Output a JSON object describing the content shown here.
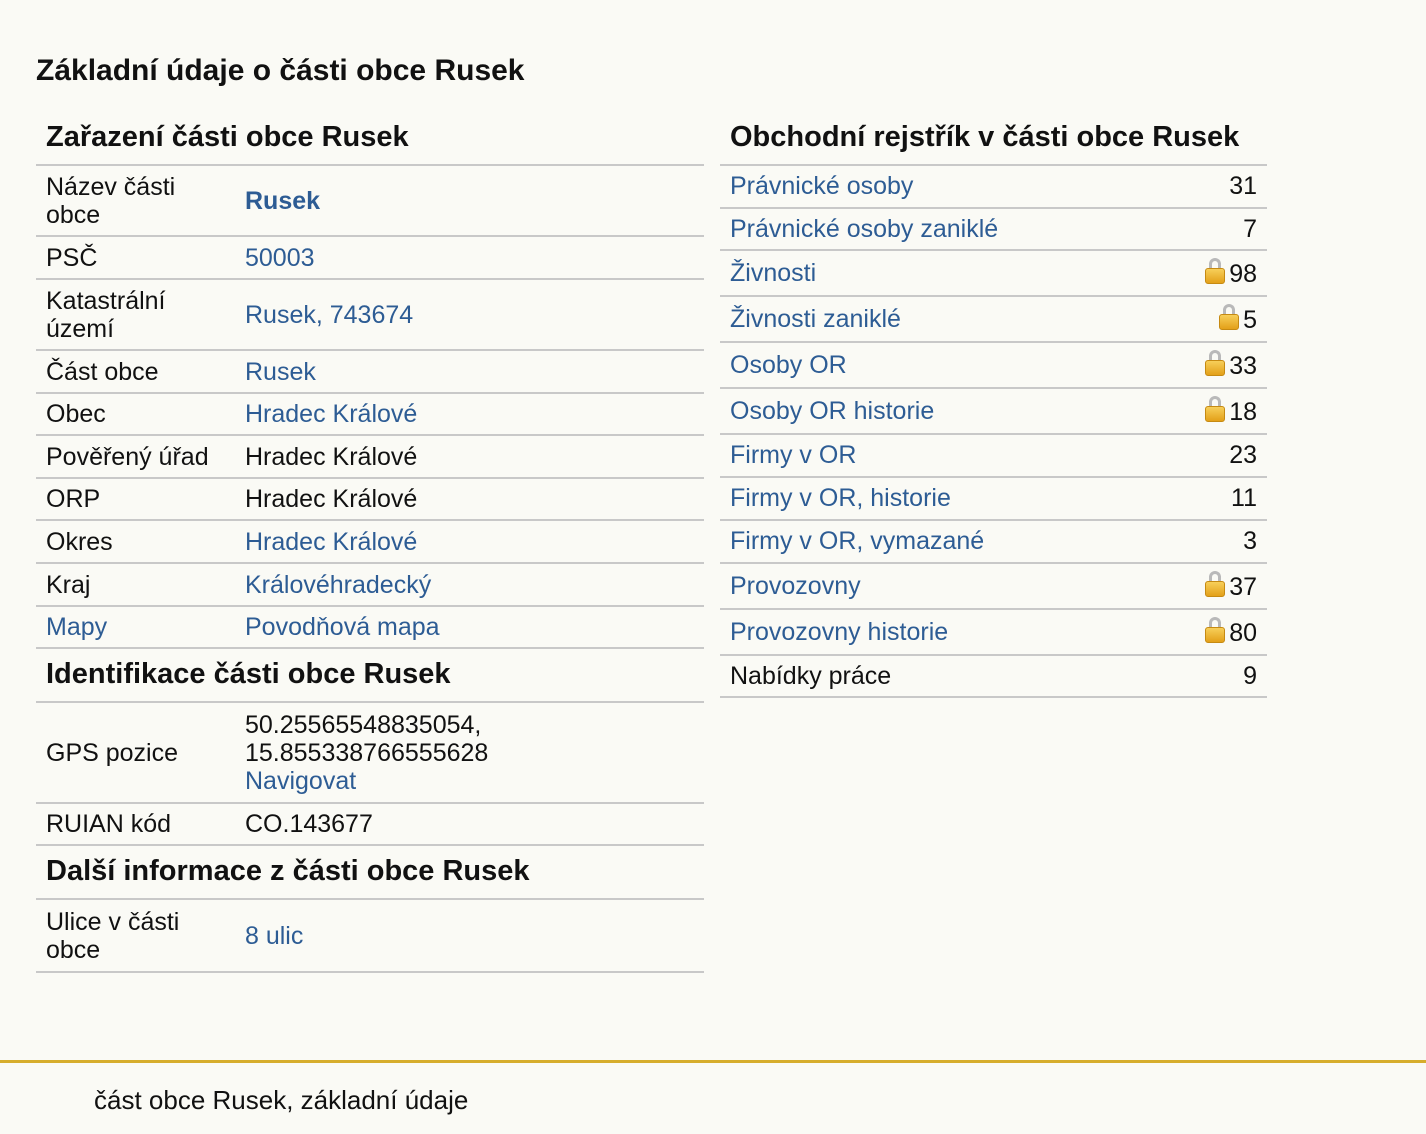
{
  "page_title": "Základní údaje o části obce Rusek",
  "zarazeni": {
    "title": "Zařazení části obce Rusek",
    "rows": [
      {
        "label": "Název části obce",
        "value": "Rusek"
      },
      {
        "label": "PSČ",
        "value": "50003"
      },
      {
        "label": "Katastrální území",
        "value": "Rusek, 743674"
      },
      {
        "label": "Část obce",
        "value": "Rusek"
      },
      {
        "label": "Obec",
        "value": "Hradec Králové"
      },
      {
        "label": "Pověřený úřad",
        "value": "Hradec Králové"
      },
      {
        "label": "ORP",
        "value": "Hradec Králové"
      },
      {
        "label": "Okres",
        "value": "Hradec Králové"
      },
      {
        "label": "Kraj",
        "value": "Královéhradecký"
      },
      {
        "label": "Mapy",
        "value": "Povodňová mapa"
      }
    ]
  },
  "identifikace": {
    "title": "Identifikace části obce Rusek",
    "gps_label": "GPS pozice",
    "gps_lat": "50.25565548835054,",
    "gps_lon": "15.855338766555628",
    "navigate": "Navigovat",
    "ruian_label": "RUIAN kód",
    "ruian_value": "CO.143677"
  },
  "dalsi": {
    "title": "Další informace z části obce Rusek",
    "label": "Ulice v části obce",
    "value": "8 ulic"
  },
  "rejstrik": {
    "title": "Obchodní rejstřík v části obce Rusek",
    "rows": [
      {
        "label": "Právnické osoby",
        "count": "31",
        "locked": false
      },
      {
        "label": "Právnické osoby zaniklé",
        "count": "7",
        "locked": false
      },
      {
        "label": "Živnosti",
        "count": "98",
        "locked": true
      },
      {
        "label": "Živnosti zaniklé",
        "count": "5",
        "locked": true
      },
      {
        "label": "Osoby OR",
        "count": "33",
        "locked": true
      },
      {
        "label": "Osoby OR historie",
        "count": "18",
        "locked": true
      },
      {
        "label": "Firmy v OR",
        "count": "23",
        "locked": false
      },
      {
        "label": "Firmy v OR, historie",
        "count": "11",
        "locked": false
      },
      {
        "label": "Firmy v OR, vymazané",
        "count": "3",
        "locked": false
      },
      {
        "label": "Provozovny",
        "count": "37",
        "locked": true
      },
      {
        "label": "Provozovny historie",
        "count": "80",
        "locked": true
      },
      {
        "label": "Nabídky práce",
        "count": "9",
        "locked": false
      }
    ]
  },
  "footer": {
    "text": "část obce Rusek, základní údaje"
  },
  "colors": {
    "link": "#2d5c94",
    "footer_line": "#d6ad2c",
    "background": "#fafaf5"
  }
}
